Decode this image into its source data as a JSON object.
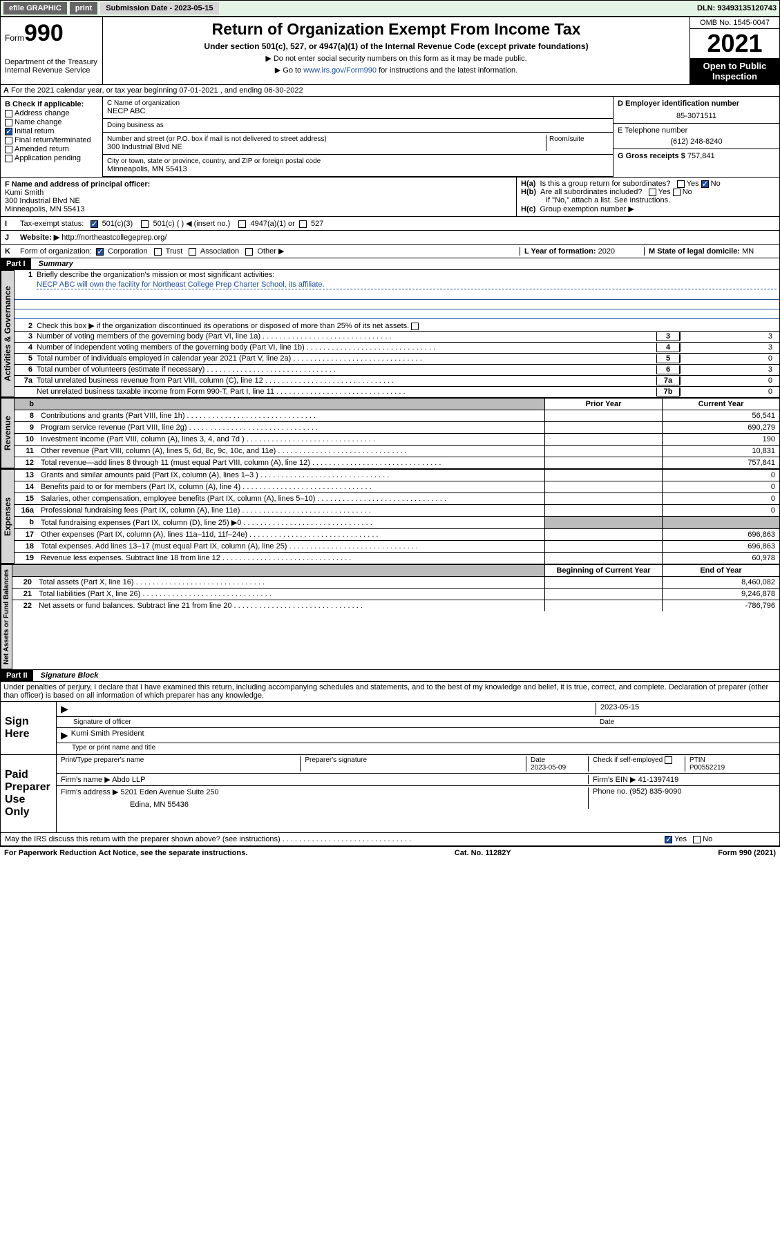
{
  "topbar": {
    "efile": "efile GRAPHIC",
    "print": "print",
    "submission": "Submission Date - 2023-05-15",
    "dln": "DLN: 93493135120743"
  },
  "header": {
    "form_prefix": "Form",
    "form_number": "990",
    "dept": "Department of the Treasury\nInternal Revenue Service",
    "title": "Return of Organization Exempt From Income Tax",
    "sub1": "Under section 501(c), 527, or 4947(a)(1) of the Internal Revenue Code (except private foundations)",
    "sub2a": "▶ Do not enter social security numbers on this form as it may be made public.",
    "sub2b": "▶ Go to",
    "link": "www.irs.gov/Form990",
    "sub2c": "for instructions and the latest information.",
    "omb": "OMB No. 1545-0047",
    "year": "2021",
    "open": "Open to Public Inspection"
  },
  "periodA": "For the 2021 calendar year, or tax year beginning 07-01-2021   , and ending 06-30-2022",
  "boxB_label": "B Check if applicable:",
  "boxB": {
    "address": "Address change",
    "name": "Name change",
    "initial": "Initial return",
    "final": "Final return/terminated",
    "amended": "Amended return",
    "application": "Application pending"
  },
  "boxC": {
    "label": "C Name of organization",
    "name": "NECP ABC",
    "dba_label": "Doing business as",
    "dba": "",
    "street_label": "Number and street (or P.O. box if mail is not delivered to street address)",
    "room_label": "Room/suite",
    "street": "300 Industrial Blvd NE",
    "city_label": "City or town, state or province, country, and ZIP or foreign postal code",
    "city": "Minneapolis, MN  55413"
  },
  "boxD": {
    "label": "D Employer identification number",
    "value": "85-3071511"
  },
  "boxE": {
    "label": "E Telephone number",
    "value": "(612) 248-8240"
  },
  "boxG": {
    "label": "G Gross receipts $",
    "value": "757,841"
  },
  "boxF": {
    "label": "F Name and address of principal officer:",
    "name": "Kumi Smith",
    "addr1": "300 Industrial Blvd NE",
    "addr2": "Minneapolis, MN  55413"
  },
  "boxH": {
    "a": "Is this a group return for subordinates?",
    "b": "Are all subordinates included?",
    "b_note": "If \"No,\" attach a list. See instructions.",
    "c": "Group exemption number ▶",
    "ha_label": "H(a)",
    "hb_label": "H(b)",
    "hc_label": "H(c)",
    "yes": "Yes",
    "no": "No"
  },
  "boxI": {
    "lbl": "I",
    "label": "Tax-exempt status:",
    "o1": "501(c)(3)",
    "o2": "501(c) (  ) ◀ (insert no.)",
    "o3": "4947(a)(1) or",
    "o4": "527"
  },
  "boxJ": {
    "lbl": "J",
    "label": "Website: ▶",
    "value": "http://northeastcollegeprep.org/"
  },
  "boxK": {
    "lbl": "K",
    "label": "Form of organization:",
    "o1": "Corporation",
    "o2": "Trust",
    "o3": "Association",
    "o4": "Other ▶"
  },
  "boxL": {
    "label": "L Year of formation:",
    "value": "2020"
  },
  "boxM": {
    "label": "M State of legal domicile:",
    "value": "MN"
  },
  "part1": {
    "hdr": "Part I",
    "title": "Summary",
    "q1a": "Briefly describe the organization's mission or most significant activities:",
    "q1b": "NECP ABC will own the facility for Northeast College Prep Charter School, its affiliate.",
    "q2": "Check this box ▶        if the organization discontinued its operations or disposed of more than 25% of its net assets.",
    "rows_gov": [
      {
        "n": "3",
        "t": "Number of voting members of the governing body (Part VI, line 1a)",
        "box": "3",
        "v": "3"
      },
      {
        "n": "4",
        "t": "Number of independent voting members of the governing body (Part VI, line 1b)",
        "box": "4",
        "v": "3"
      },
      {
        "n": "5",
        "t": "Total number of individuals employed in calendar year 2021 (Part V, line 2a)",
        "box": "5",
        "v": "0"
      },
      {
        "n": "6",
        "t": "Total number of volunteers (estimate if necessary)",
        "box": "6",
        "v": "3"
      },
      {
        "n": "7a",
        "t": "Total unrelated business revenue from Part VIII, column (C), line 12",
        "box": "7a",
        "v": "0"
      },
      {
        "n": "",
        "t": "Net unrelated business taxable income from Form 990-T, Part I, line 11",
        "box": "7b",
        "v": "0"
      }
    ],
    "col_prior": "Prior Year",
    "col_current": "Current Year",
    "rows_rev": [
      {
        "n": "8",
        "t": "Contributions and grants (Part VIII, line 1h)",
        "p": "",
        "c": "56,541"
      },
      {
        "n": "9",
        "t": "Program service revenue (Part VIII, line 2g)",
        "p": "",
        "c": "690,279"
      },
      {
        "n": "10",
        "t": "Investment income (Part VIII, column (A), lines 3, 4, and 7d )",
        "p": "",
        "c": "190"
      },
      {
        "n": "11",
        "t": "Other revenue (Part VIII, column (A), lines 5, 6d, 8c, 9c, 10c, and 11e)",
        "p": "",
        "c": "10,831"
      },
      {
        "n": "12",
        "t": "Total revenue—add lines 8 through 11 (must equal Part VIII, column (A), line 12)",
        "p": "",
        "c": "757,841"
      }
    ],
    "rows_exp": [
      {
        "n": "13",
        "t": "Grants and similar amounts paid (Part IX, column (A), lines 1–3 )",
        "p": "",
        "c": "0"
      },
      {
        "n": "14",
        "t": "Benefits paid to or for members (Part IX, column (A), line 4)",
        "p": "",
        "c": "0"
      },
      {
        "n": "15",
        "t": "Salaries, other compensation, employee benefits (Part IX, column (A), lines 5–10)",
        "p": "",
        "c": "0"
      },
      {
        "n": "16a",
        "t": "Professional fundraising fees (Part IX, column (A), line 11e)",
        "p": "",
        "c": "0"
      },
      {
        "n": "b",
        "t": "Total fundraising expenses (Part IX, column (D), line 25) ▶0",
        "p": "shade",
        "c": "shade"
      },
      {
        "n": "17",
        "t": "Other expenses (Part IX, column (A), lines 11a–11d, 11f–24e)",
        "p": "",
        "c": "696,863"
      },
      {
        "n": "18",
        "t": "Total expenses. Add lines 13–17 (must equal Part IX, column (A), line 25)",
        "p": "",
        "c": "696,863"
      },
      {
        "n": "19",
        "t": "Revenue less expenses. Subtract line 18 from line 12",
        "p": "",
        "c": "60,978"
      }
    ],
    "col_begin": "Beginning of Current Year",
    "col_end": "End of Year",
    "rows_net": [
      {
        "n": "20",
        "t": "Total assets (Part X, line 16)",
        "p": "",
        "c": "8,460,082"
      },
      {
        "n": "21",
        "t": "Total liabilities (Part X, line 26)",
        "p": "",
        "c": "9,246,878"
      },
      {
        "n": "22",
        "t": "Net assets or fund balances. Subtract line 21 from line 20",
        "p": "",
        "c": "-786,796"
      }
    ],
    "tab_gov": "Activities & Governance",
    "tab_rev": "Revenue",
    "tab_exp": "Expenses",
    "tab_net": "Net Assets or Fund Balances"
  },
  "part2": {
    "hdr": "Part II",
    "title": "Signature Block",
    "decl": "Under penalties of perjury, I declare that I have examined this return, including accompanying schedules and statements, and to the best of my knowledge and belief, it is true, correct, and complete. Declaration of preparer (other than officer) is based on all information of which preparer has any knowledge.",
    "sign_here": "Sign Here",
    "sig_officer": "Signature of officer",
    "sig_date": "Date",
    "sig_date_val": "2023-05-15",
    "officer_name": "Kumi Smith  President",
    "officer_sub": "Type or print name and title",
    "paid": "Paid Preparer Use Only",
    "prep_name_lbl": "Print/Type preparer's name",
    "prep_sig_lbl": "Preparer's signature",
    "prep_date_lbl": "Date",
    "prep_date": "2023-05-09",
    "prep_check": "Check        if self-employed",
    "ptin_lbl": "PTIN",
    "ptin": "P00552219",
    "firm_name_lbl": "Firm's name    ▶",
    "firm_name": "Abdo LLP",
    "firm_ein_lbl": "Firm's EIN ▶",
    "firm_ein": "41-1397419",
    "firm_addr_lbl": "Firm's address ▶",
    "firm_addr1": "5201 Eden Avenue Suite 250",
    "firm_addr2": "Edina, MN  55436",
    "firm_phone_lbl": "Phone no.",
    "firm_phone": "(952) 835-9090",
    "discuss": "May the IRS discuss this return with the preparer shown above? (see instructions)",
    "yes": "Yes",
    "no": "No"
  },
  "footer": {
    "left": "For Paperwork Reduction Act Notice, see the separate instructions.",
    "mid": "Cat. No. 11282Y",
    "right": "Form 990 (2021)"
  }
}
